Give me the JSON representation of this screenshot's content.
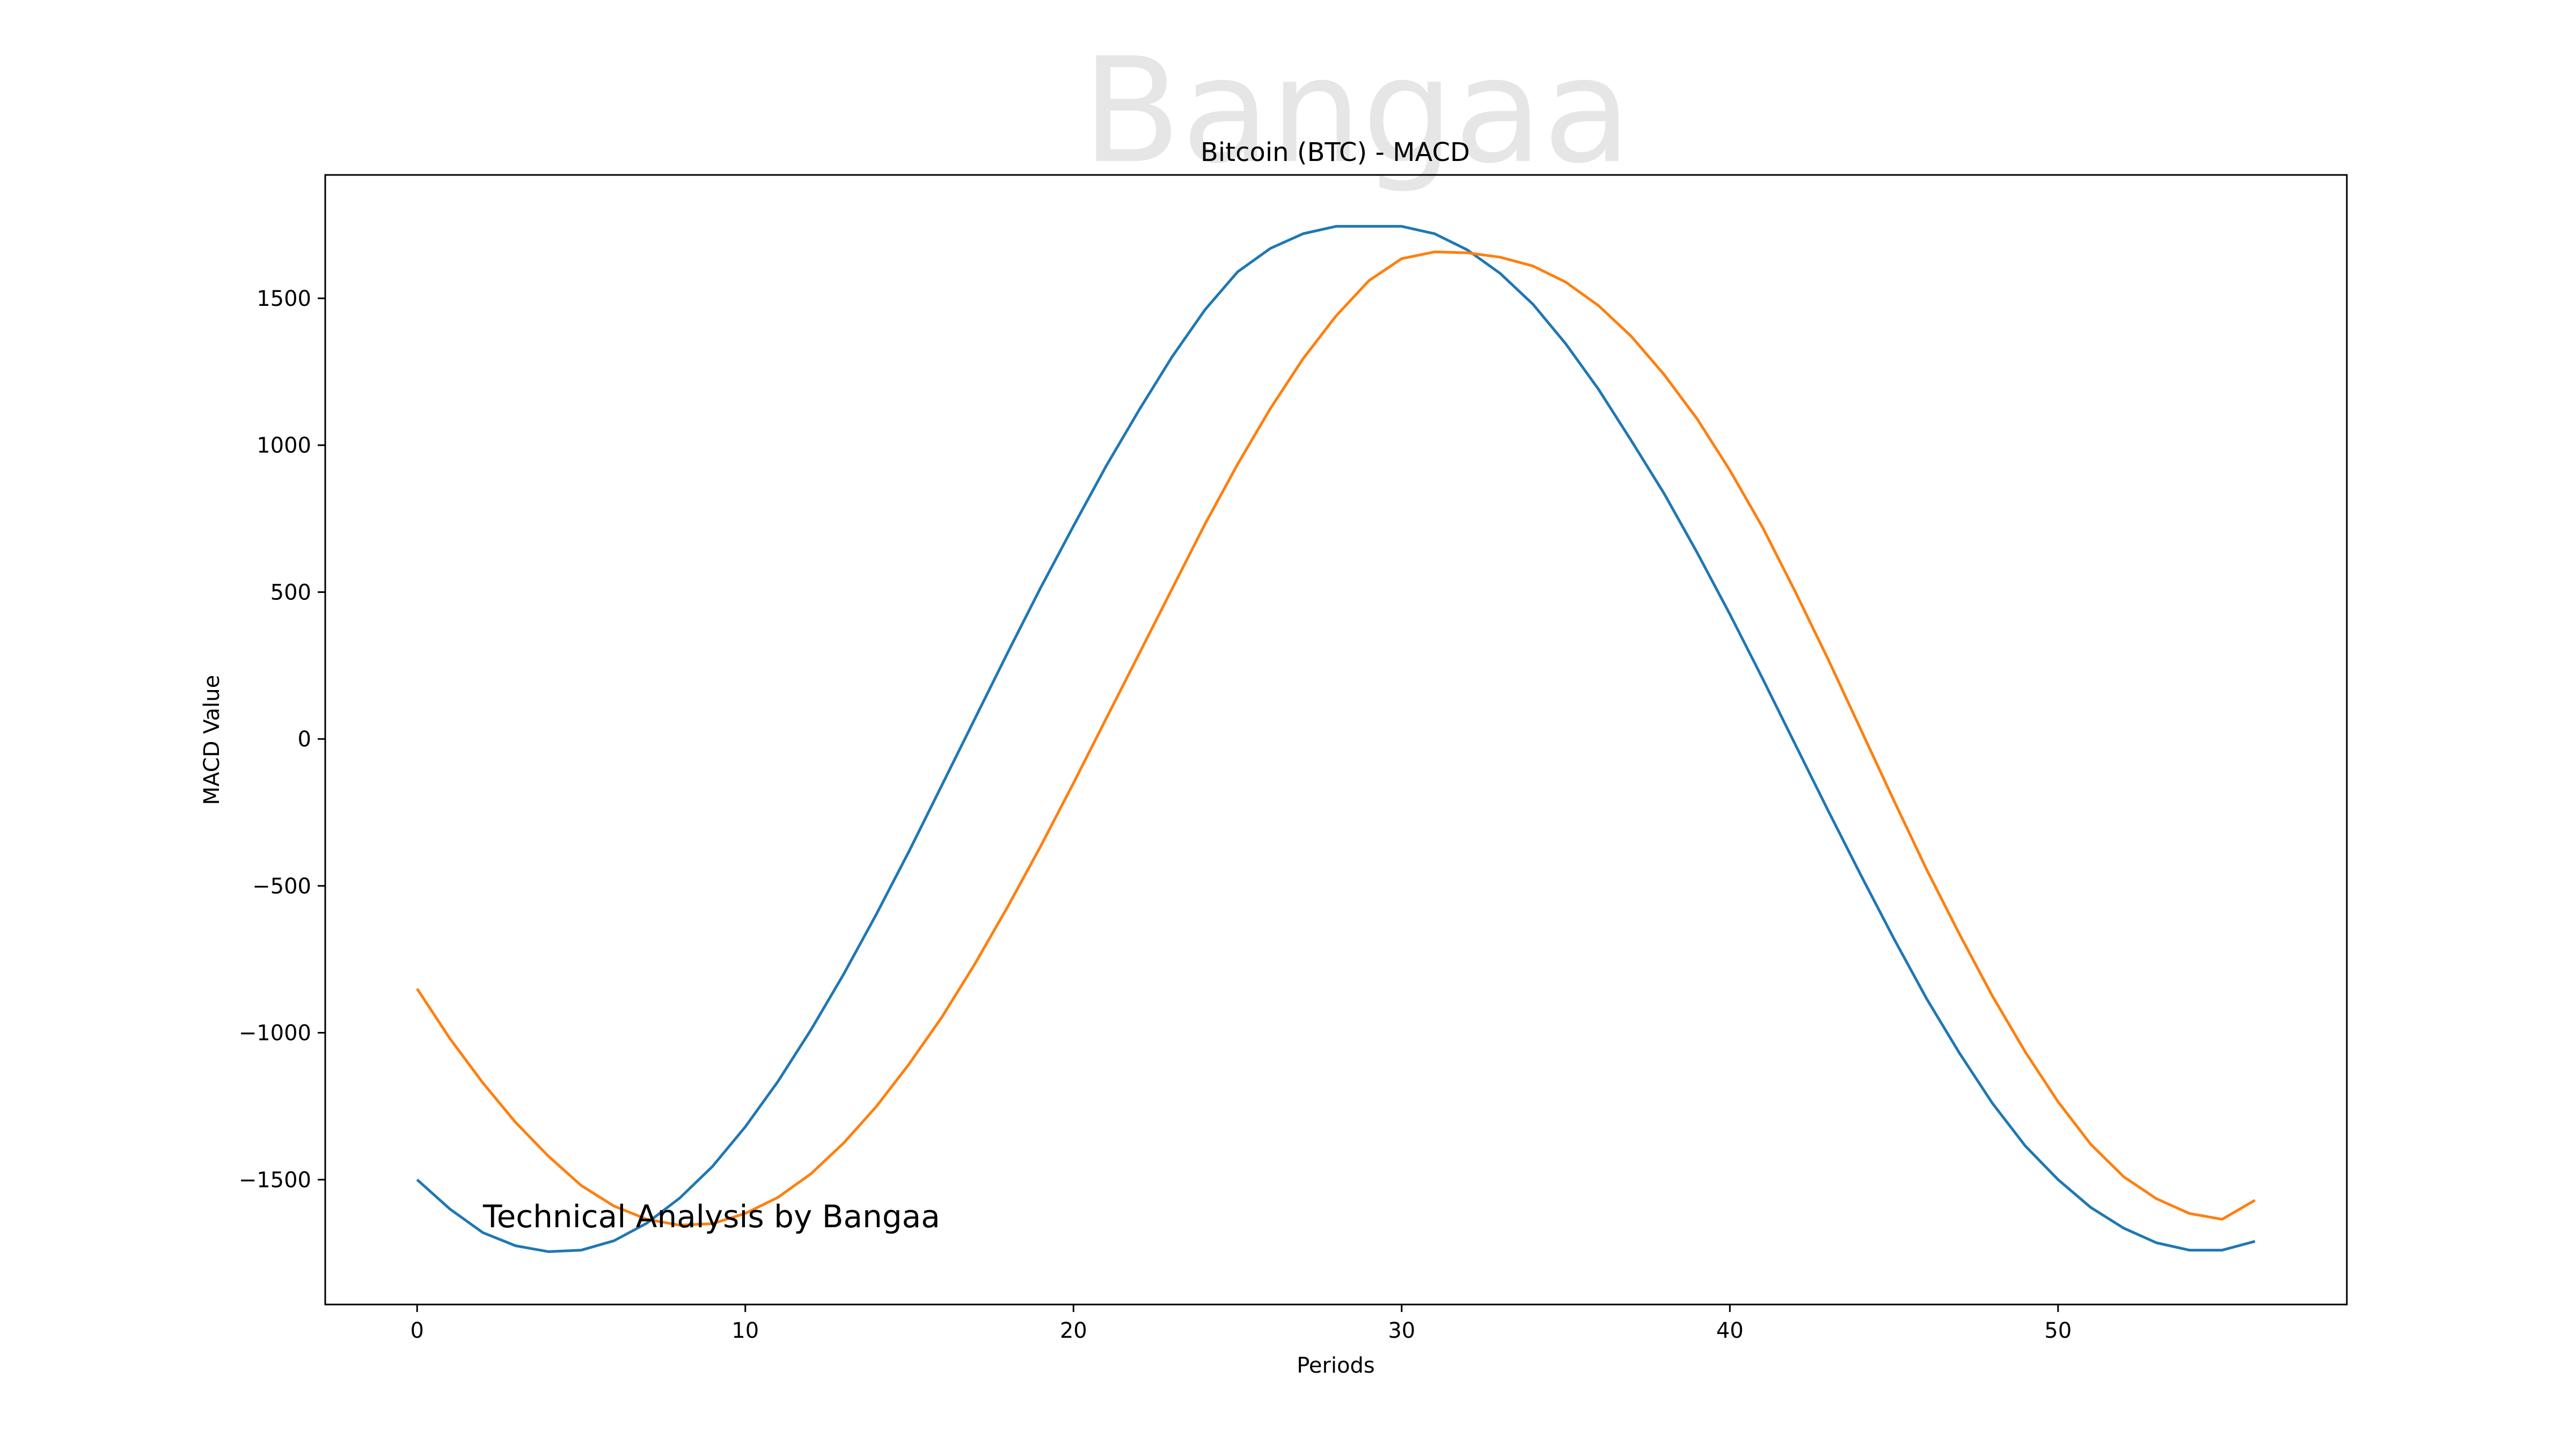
{
  "chart_data": {
    "type": "line",
    "title": "Bitcoin (BTC) - MACD",
    "xlabel": "Periods",
    "ylabel": "MACD Value",
    "watermark": "Bangaa",
    "annotation": "Technical Analysis by Bangaa",
    "xlim": [
      -2.8,
      58.8
    ],
    "ylim": [
      -1925,
      1920
    ],
    "x_ticks": [
      0,
      10,
      20,
      30,
      40,
      50
    ],
    "y_ticks": [
      -1500,
      -1000,
      -500,
      0,
      500,
      1000,
      1500
    ],
    "grid": false,
    "legend": "none",
    "colors": {
      "macd": "#1f77b4",
      "signal": "#ff7f0e",
      "watermark": "#e6e6e6",
      "text": "#000000"
    },
    "x": [
      0,
      1,
      2,
      3,
      4,
      5,
      6,
      7,
      8,
      9,
      10,
      11,
      12,
      13,
      14,
      15,
      16,
      17,
      18,
      19,
      20,
      21,
      22,
      23,
      24,
      25,
      26,
      27,
      28,
      29,
      30,
      31,
      32,
      33,
      34,
      35,
      36,
      37,
      38,
      39,
      40,
      41,
      42,
      43,
      44,
      45,
      46,
      47,
      48,
      49,
      50,
      51,
      52,
      53,
      54,
      55,
      56
    ],
    "series": [
      {
        "key": "macd",
        "values": [
          -1500,
          -1600,
          -1680,
          -1725,
          -1745,
          -1740,
          -1708,
          -1648,
          -1563,
          -1455,
          -1320,
          -1165,
          -990,
          -800,
          -595,
          -380,
          -155,
          70,
          295,
          515,
          725,
          930,
          1120,
          1300,
          1460,
          1590,
          1670,
          1720,
          1745,
          1745,
          1745,
          1720,
          1665,
          1585,
          1480,
          1345,
          1190,
          1015,
          835,
          635,
          425,
          205,
          -20,
          -245,
          -465,
          -680,
          -885,
          -1070,
          -1240,
          -1385,
          -1500,
          -1595,
          -1665,
          -1715,
          -1740,
          -1740,
          -1710
        ]
      },
      {
        "key": "signal",
        "values": [
          -850,
          -1020,
          -1170,
          -1305,
          -1420,
          -1520,
          -1590,
          -1635,
          -1655,
          -1650,
          -1615,
          -1560,
          -1480,
          -1375,
          -1250,
          -1105,
          -945,
          -765,
          -570,
          -365,
          -150,
          70,
          290,
          510,
          730,
          935,
          1125,
          1295,
          1440,
          1560,
          1635,
          1658,
          1655,
          1640,
          1610,
          1555,
          1475,
          1370,
          1240,
          1090,
          915,
          720,
          500,
          270,
          30,
          -210,
          -445,
          -665,
          -875,
          -1065,
          -1235,
          -1380,
          -1490,
          -1565,
          -1615,
          -1635,
          -1570
        ]
      }
    ]
  }
}
